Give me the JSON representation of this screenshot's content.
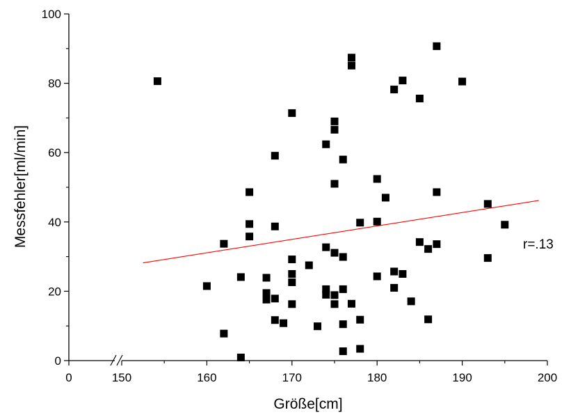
{
  "chart_data": {
    "type": "scatter",
    "title": "",
    "xlabel": "Größe[cm]",
    "ylabel": "Messfehler[ml/min]",
    "xlim": [
      150,
      200
    ],
    "ylim": [
      0,
      100
    ],
    "x_axis_break": {
      "from": 0,
      "to": 150
    },
    "x_ticks": [
      {
        "value": 0,
        "label": "0"
      },
      {
        "value": 150,
        "label": "150"
      },
      {
        "value": 160,
        "label": "160"
      },
      {
        "value": 170,
        "label": "170"
      },
      {
        "value": 180,
        "label": "180"
      },
      {
        "value": 190,
        "label": "190"
      },
      {
        "value": 200,
        "label": "200"
      }
    ],
    "y_ticks": [
      {
        "value": 0,
        "label": "0"
      },
      {
        "value": 20,
        "label": "20"
      },
      {
        "value": 40,
        "label": "40"
      },
      {
        "value": 60,
        "label": "60"
      },
      {
        "value": 80,
        "label": "80"
      },
      {
        "value": 100,
        "label": "100"
      }
    ],
    "grid": false,
    "marker_color": "#000000",
    "fit_line_color": "#ff0000",
    "annotation": "r=.13",
    "series": [
      {
        "points": [
          [
            154.2,
            80.6
          ],
          [
            160,
            21.5
          ],
          [
            162,
            33.7
          ],
          [
            162,
            7.8
          ],
          [
            164,
            24.1
          ],
          [
            164,
            0.9
          ],
          [
            165,
            48.6
          ],
          [
            165,
            39.4
          ],
          [
            165,
            35.8
          ],
          [
            167,
            23.9
          ],
          [
            167,
            19.5
          ],
          [
            167,
            17.6
          ],
          [
            168,
            59.1
          ],
          [
            168,
            38.7
          ],
          [
            168,
            17.9
          ],
          [
            168,
            11.7
          ],
          [
            169,
            10.8
          ],
          [
            170,
            71.4
          ],
          [
            170,
            29.2
          ],
          [
            170,
            25.0
          ],
          [
            170,
            22.6
          ],
          [
            170,
            16.3
          ],
          [
            172,
            27.5
          ],
          [
            173,
            9.9
          ],
          [
            174,
            62.4
          ],
          [
            174,
            32.7
          ],
          [
            174,
            20.6
          ],
          [
            174,
            19.0
          ],
          [
            175,
            69.0
          ],
          [
            175,
            66.6
          ],
          [
            175,
            51.0
          ],
          [
            175,
            31.1
          ],
          [
            175,
            18.9
          ],
          [
            175,
            16.3
          ],
          [
            176,
            58.0
          ],
          [
            176,
            29.9
          ],
          [
            176,
            20.6
          ],
          [
            176,
            10.5
          ],
          [
            176,
            2.7
          ],
          [
            177,
            87.4
          ],
          [
            177,
            85.1
          ],
          [
            177,
            16.4
          ],
          [
            178,
            39.8
          ],
          [
            178,
            11.8
          ],
          [
            178,
            3.4
          ],
          [
            180,
            52.4
          ],
          [
            180,
            40.1
          ],
          [
            180,
            24.3
          ],
          [
            181,
            47.0
          ],
          [
            182,
            78.2
          ],
          [
            182,
            25.7
          ],
          [
            182,
            21.0
          ],
          [
            183,
            80.8
          ],
          [
            183,
            25.0
          ],
          [
            184,
            17.1
          ],
          [
            185,
            75.6
          ],
          [
            185,
            34.2
          ],
          [
            186,
            32.2
          ],
          [
            186,
            11.9
          ],
          [
            187,
            90.7
          ],
          [
            187,
            48.6
          ],
          [
            187,
            33.6
          ],
          [
            190,
            80.5
          ],
          [
            193,
            45.2
          ],
          [
            193,
            29.6
          ],
          [
            195,
            39.2
          ]
        ]
      }
    ],
    "fit_line": {
      "x": [
        152.5,
        199
      ],
      "y": [
        28.2,
        46.2
      ]
    }
  }
}
